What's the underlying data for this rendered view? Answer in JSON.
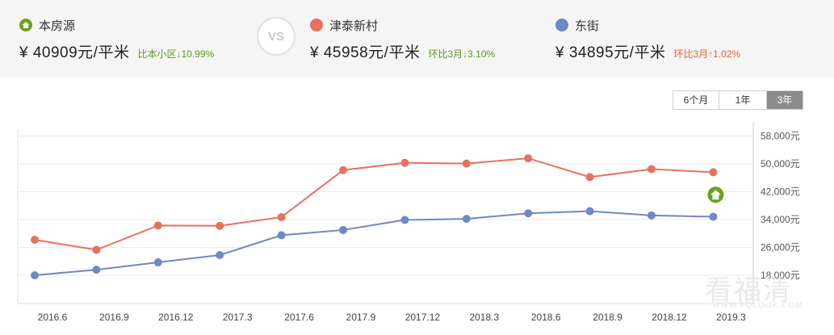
{
  "header": {
    "own": {
      "label": "本房源",
      "price": "¥ 40909元/平米",
      "change": "比本小区↓10.99%",
      "icon": "home-icon",
      "color": "#6aa219"
    },
    "vs": "VS",
    "compare1": {
      "label": "津泰新村",
      "price": "¥ 45958元/平米",
      "change": "环比3月↓3.10%",
      "color": "#e6725e"
    },
    "compare2": {
      "label": "东街",
      "price": "¥ 34895元/平米",
      "change": "环比3月↑1.02%",
      "color": "#6e88c8"
    }
  },
  "range_buttons": [
    {
      "label": "6个月",
      "active": false
    },
    {
      "label": "1年",
      "active": false
    },
    {
      "label": "3年",
      "active": true
    }
  ],
  "watermark": {
    "main": "看福清",
    "sub": "WWW.FQLOOK.COM"
  },
  "chart_data": {
    "type": "line",
    "categories": [
      "2016.6",
      "2016.9",
      "2016.12",
      "2017.3",
      "2017.6",
      "2017.9",
      "2017.12",
      "2018.3",
      "2018.6",
      "2018.9",
      "2018.12",
      "2019.3"
    ],
    "yticks": [
      "18,000元",
      "26,000元",
      "34,000元",
      "42,000元",
      "50,000元",
      "58,000元"
    ],
    "ylim": [
      14000,
      61000
    ],
    "series": [
      {
        "name": "津泰新村",
        "color": "#e6725e",
        "values": [
          28200,
          25300,
          32300,
          32200,
          34700,
          48200,
          50300,
          50100,
          51600,
          46200,
          48500,
          47600
        ]
      },
      {
        "name": "东街",
        "color": "#6e88c8",
        "values": [
          18000,
          19600,
          21700,
          23800,
          29500,
          31000,
          33900,
          34200,
          35800,
          36400,
          35200,
          34800
        ]
      }
    ],
    "marker": {
      "category": "2019.3",
      "value": 40909,
      "icon": "home-icon",
      "color": "#6aa219"
    }
  }
}
